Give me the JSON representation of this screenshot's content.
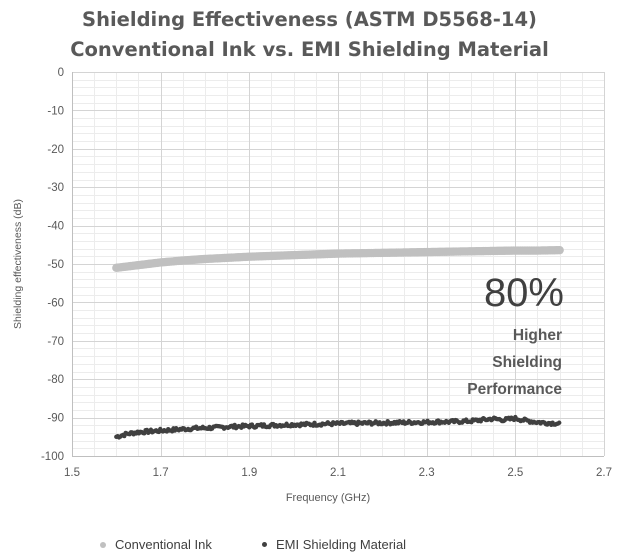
{
  "chart_data": {
    "type": "scatter",
    "title": [
      "Shielding Effectiveness (ASTM D5568-14)",
      "Conventional Ink vs. EMI Shielding Material"
    ],
    "xlabel": "Frequency (GHz)",
    "ylabel": "Shielding effectiveness (dB)",
    "xlim": [
      1.5,
      2.7
    ],
    "ylim": [
      -100,
      0
    ],
    "xticks": [
      1.5,
      1.7,
      1.9,
      2.1,
      2.3,
      2.5,
      2.7
    ],
    "xtick_labels": [
      "1.5",
      "1.7",
      "1.9",
      "2.1",
      "2.3",
      "2.5",
      "2.7"
    ],
    "yticks": [
      0,
      -10,
      -20,
      -30,
      -40,
      -50,
      -60,
      -70,
      -80,
      -90,
      -100
    ],
    "ytick_labels": [
      "0",
      "-10",
      "-20",
      "-30",
      "-40",
      "-50",
      "-60",
      "-70",
      "-80",
      "-90",
      "-100"
    ],
    "grid": true,
    "legend_position": "bottom",
    "series": [
      {
        "name": "Conventional Ink",
        "color": "#c0c0c0",
        "x": [
          1.6,
          1.65,
          1.7,
          1.75,
          1.8,
          1.85,
          1.9,
          1.95,
          2.0,
          2.05,
          2.1,
          2.15,
          2.2,
          2.25,
          2.3,
          2.35,
          2.4,
          2.45,
          2.5,
          2.55,
          2.6
        ],
        "y": [
          -51.0,
          -50.3,
          -49.6,
          -49.1,
          -48.7,
          -48.4,
          -48.1,
          -47.9,
          -47.7,
          -47.5,
          -47.3,
          -47.2,
          -47.1,
          -47.0,
          -46.9,
          -46.8,
          -46.7,
          -46.6,
          -46.5,
          -46.5,
          -46.4
        ]
      },
      {
        "name": "EMI Shielding Material",
        "color": "#404040",
        "x": [
          1.6,
          1.625,
          1.65,
          1.675,
          1.7,
          1.725,
          1.75,
          1.775,
          1.8,
          1.825,
          1.85,
          1.875,
          1.9,
          1.925,
          1.95,
          1.975,
          2.0,
          2.025,
          2.05,
          2.075,
          2.1,
          2.125,
          2.15,
          2.175,
          2.2,
          2.225,
          2.25,
          2.275,
          2.3,
          2.325,
          2.35,
          2.375,
          2.4,
          2.425,
          2.45,
          2.475,
          2.5,
          2.525,
          2.55,
          2.575,
          2.6
        ],
        "y": [
          -95.0,
          -94.2,
          -93.8,
          -93.6,
          -93.4,
          -93.2,
          -93.0,
          -92.8,
          -92.7,
          -92.6,
          -92.4,
          -92.3,
          -92.2,
          -92.1,
          -92.0,
          -91.9,
          -91.8,
          -91.8,
          -91.7,
          -91.6,
          -91.6,
          -91.5,
          -91.5,
          -91.4,
          -91.4,
          -91.3,
          -91.3,
          -91.2,
          -91.2,
          -91.1,
          -91.1,
          -91.0,
          -90.9,
          -90.6,
          -90.3,
          -90.6,
          -90.2,
          -90.8,
          -91.2,
          -91.4,
          -91.5
        ]
      }
    ],
    "annotations": [
      {
        "text": "80%"
      },
      {
        "text": "Higher"
      },
      {
        "text": "Shielding"
      },
      {
        "text": "Performance"
      }
    ]
  }
}
